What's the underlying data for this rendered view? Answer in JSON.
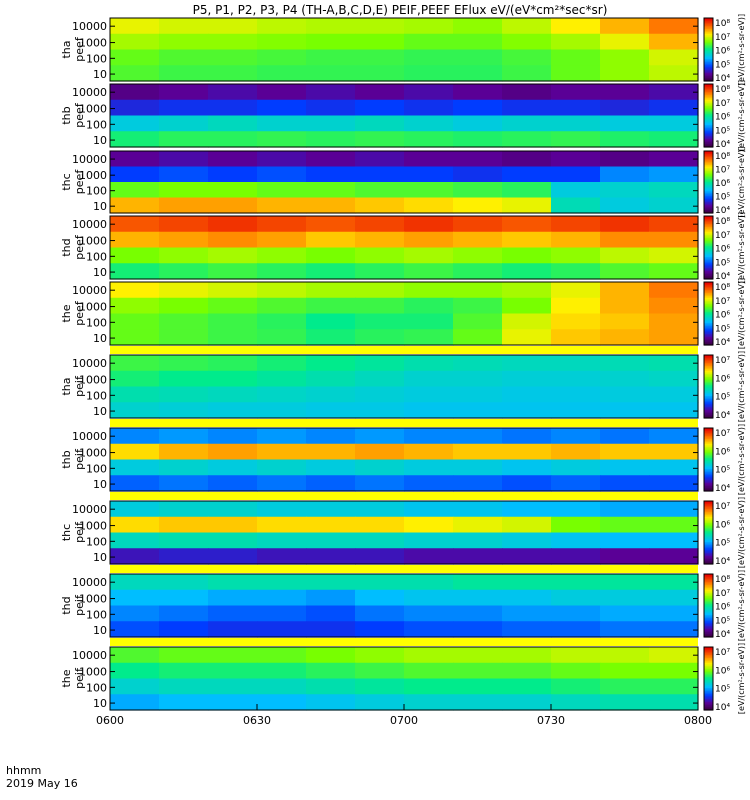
{
  "chart_data": {
    "type": "heatmap",
    "title": "P5, P1, P2, P3, P4 (TH-A,B,C,D,E) PEIF,PEEF EFlux eV/(eV*cm²*sec*sr)",
    "xlabel": "hhmm",
    "date_label": "2019 May 16",
    "x_ticks": [
      "0600",
      "0630",
      "0700",
      "0730",
      "0800"
    ],
    "x_range": [
      "06:00",
      "08:00"
    ],
    "y_scale": "log",
    "y_ticks": [
      "10",
      "100",
      "1000",
      "10000"
    ],
    "colorbar_unit": "[eV/(cm²-s-sr-eV)]",
    "colormap": "rainbow (purple-blue-cyan-green-yellow-red)",
    "time_bins": [
      "0600",
      "0610",
      "0620",
      "0630",
      "0640",
      "0650",
      "0700",
      "0710",
      "0720",
      "0730",
      "0740",
      "0750"
    ],
    "panels": [
      {
        "label1": "tha",
        "label2": "peef",
        "cb_ticks": [
          "10⁴",
          "10⁵",
          "10⁶",
          "10⁷",
          "10⁸"
        ],
        "cb_exp": [
          4,
          8
        ],
        "levels": [
          [
            0.72,
            0.7,
            0.7,
            0.68,
            0.67,
            0.67,
            0.66,
            0.64,
            0.68,
            0.74,
            0.8,
            0.86
          ],
          [
            0.66,
            0.64,
            0.64,
            0.63,
            0.62,
            0.62,
            0.6,
            0.6,
            0.63,
            0.66,
            0.72,
            0.8
          ],
          [
            0.6,
            0.58,
            0.58,
            0.57,
            0.56,
            0.56,
            0.55,
            0.55,
            0.57,
            0.6,
            0.64,
            0.7
          ],
          [
            0.58,
            0.56,
            0.56,
            0.55,
            0.55,
            0.55,
            0.54,
            0.54,
            0.56,
            0.6,
            0.64,
            0.68
          ]
        ]
      },
      {
        "label1": "thb",
        "label2": "peef",
        "cb_ticks": [
          "10⁴",
          "10⁵",
          "10⁶",
          "10⁷",
          "10⁸"
        ],
        "cb_exp": [
          4,
          8
        ],
        "levels": [
          [
            0.08,
            0.1,
            0.12,
            0.1,
            0.12,
            0.1,
            0.12,
            0.1,
            0.08,
            0.1,
            0.1,
            0.12
          ],
          [
            0.18,
            0.2,
            0.2,
            0.22,
            0.2,
            0.22,
            0.2,
            0.22,
            0.2,
            0.2,
            0.18,
            0.2
          ],
          [
            0.4,
            0.42,
            0.44,
            0.42,
            0.42,
            0.44,
            0.42,
            0.4,
            0.42,
            0.42,
            0.4,
            0.4
          ],
          [
            0.52,
            0.54,
            0.54,
            0.55,
            0.54,
            0.55,
            0.54,
            0.53,
            0.54,
            0.55,
            0.53,
            0.52
          ]
        ]
      },
      {
        "label1": "thc",
        "label2": "peef",
        "cb_ticks": [
          "10⁴",
          "10⁵",
          "10⁶",
          "10⁷",
          "10⁸"
        ],
        "cb_exp": [
          4,
          8
        ],
        "levels": [
          [
            0.1,
            0.12,
            0.1,
            0.12,
            0.1,
            0.12,
            0.1,
            0.1,
            0.08,
            0.1,
            0.08,
            0.1
          ],
          [
            0.22,
            0.24,
            0.22,
            0.24,
            0.22,
            0.22,
            0.22,
            0.2,
            0.22,
            0.22,
            0.3,
            0.32
          ],
          [
            0.6,
            0.62,
            0.62,
            0.6,
            0.6,
            0.58,
            0.58,
            0.56,
            0.54,
            0.4,
            0.42,
            0.44
          ],
          [
            0.8,
            0.82,
            0.82,
            0.8,
            0.8,
            0.78,
            0.76,
            0.74,
            0.72,
            0.45,
            0.4,
            0.42
          ]
        ]
      },
      {
        "label1": "thd",
        "label2": "peef",
        "cb_ticks": [
          "10⁴",
          "10⁵",
          "10⁶",
          "10⁷",
          "10⁸"
        ],
        "cb_exp": [
          4,
          8
        ],
        "levels": [
          [
            0.9,
            0.92,
            0.94,
            0.92,
            0.9,
            0.92,
            0.94,
            0.92,
            0.9,
            0.92,
            0.94,
            0.92
          ],
          [
            0.8,
            0.82,
            0.84,
            0.82,
            0.78,
            0.8,
            0.82,
            0.8,
            0.78,
            0.8,
            0.84,
            0.84
          ],
          [
            0.62,
            0.64,
            0.66,
            0.64,
            0.62,
            0.64,
            0.66,
            0.64,
            0.62,
            0.64,
            0.68,
            0.7
          ],
          [
            0.52,
            0.54,
            0.56,
            0.54,
            0.52,
            0.54,
            0.56,
            0.54,
            0.52,
            0.54,
            0.58,
            0.6
          ]
        ]
      },
      {
        "label1": "the",
        "label2": "peef",
        "cb_ticks": [
          "10⁴",
          "10⁵",
          "10⁶",
          "10⁷",
          "10⁸"
        ],
        "cb_exp": [
          4,
          8
        ],
        "levels": [
          [
            0.74,
            0.72,
            0.7,
            0.68,
            0.66,
            0.66,
            0.64,
            0.64,
            0.66,
            0.72,
            0.8,
            0.86
          ],
          [
            0.64,
            0.62,
            0.6,
            0.58,
            0.56,
            0.56,
            0.54,
            0.56,
            0.62,
            0.74,
            0.8,
            0.84
          ],
          [
            0.6,
            0.58,
            0.56,
            0.54,
            0.5,
            0.52,
            0.52,
            0.58,
            0.7,
            0.76,
            0.78,
            0.82
          ],
          [
            0.6,
            0.58,
            0.56,
            0.55,
            0.52,
            0.54,
            0.55,
            0.6,
            0.72,
            0.78,
            0.8,
            0.82
          ]
        ]
      },
      {
        "label1": "tha",
        "label2": "peif",
        "cb_ticks": [
          "10⁴",
          "10⁵",
          "10⁶",
          "10⁷"
        ],
        "cb_exp": [
          4,
          7
        ],
        "levels": [
          [
            0.56,
            0.55,
            0.54,
            0.52,
            0.5,
            0.48,
            0.46,
            0.45,
            0.44,
            0.44,
            0.45,
            0.46
          ],
          [
            0.52,
            0.5,
            0.5,
            0.48,
            0.46,
            0.44,
            0.42,
            0.42,
            0.41,
            0.41,
            0.42,
            0.43
          ],
          [
            0.46,
            0.45,
            0.44,
            0.43,
            0.42,
            0.41,
            0.4,
            0.4,
            0.39,
            0.39,
            0.4,
            0.4
          ],
          [
            0.42,
            0.41,
            0.4,
            0.4,
            0.39,
            0.39,
            0.38,
            0.38,
            0.38,
            0.38,
            0.38,
            0.38
          ]
        ]
      },
      {
        "label1": "thb",
        "label2": "peif",
        "cb_ticks": [
          "10⁴",
          "10⁵",
          "10⁶",
          "10⁷"
        ],
        "cb_exp": [
          4,
          7
        ],
        "levels": [
          [
            0.3,
            0.32,
            0.3,
            0.32,
            0.3,
            0.32,
            0.3,
            0.3,
            0.28,
            0.3,
            0.28,
            0.3
          ],
          [
            0.76,
            0.8,
            0.82,
            0.8,
            0.8,
            0.82,
            0.8,
            0.78,
            0.78,
            0.8,
            0.78,
            0.78
          ],
          [
            0.4,
            0.42,
            0.4,
            0.42,
            0.4,
            0.42,
            0.4,
            0.4,
            0.38,
            0.4,
            0.38,
            0.38
          ],
          [
            0.26,
            0.28,
            0.26,
            0.28,
            0.26,
            0.28,
            0.26,
            0.26,
            0.24,
            0.26,
            0.24,
            0.24
          ]
        ]
      },
      {
        "label1": "thc",
        "label2": "peif",
        "cb_ticks": [
          "10⁴",
          "10⁵",
          "10⁶",
          "10⁷"
        ],
        "cb_exp": [
          4,
          7
        ],
        "levels": [
          [
            0.4,
            0.42,
            0.42,
            0.4,
            0.4,
            0.4,
            0.38,
            0.38,
            0.36,
            0.36,
            0.34,
            0.34
          ],
          [
            0.76,
            0.78,
            0.78,
            0.76,
            0.76,
            0.76,
            0.74,
            0.72,
            0.7,
            0.62,
            0.6,
            0.6
          ],
          [
            0.44,
            0.46,
            0.46,
            0.44,
            0.44,
            0.44,
            0.42,
            0.42,
            0.4,
            0.38,
            0.36,
            0.36
          ],
          [
            0.14,
            0.16,
            0.16,
            0.14,
            0.14,
            0.14,
            0.12,
            0.12,
            0.12,
            0.12,
            0.1,
            0.1
          ]
        ]
      },
      {
        "label1": "thd",
        "label2": "peif",
        "cb_ticks": [
          "10⁴",
          "10⁵",
          "10⁶",
          "10⁷",
          "10⁸"
        ],
        "cb_exp": [
          4,
          8
        ],
        "levels": [
          [
            0.44,
            0.44,
            0.46,
            0.46,
            0.46,
            0.46,
            0.46,
            0.48,
            0.48,
            0.48,
            0.48,
            0.48
          ],
          [
            0.36,
            0.36,
            0.34,
            0.34,
            0.32,
            0.36,
            0.38,
            0.38,
            0.38,
            0.4,
            0.4,
            0.4
          ],
          [
            0.3,
            0.28,
            0.26,
            0.26,
            0.24,
            0.28,
            0.3,
            0.3,
            0.32,
            0.32,
            0.34,
            0.34
          ],
          [
            0.24,
            0.22,
            0.2,
            0.2,
            0.2,
            0.22,
            0.24,
            0.24,
            0.26,
            0.26,
            0.28,
            0.28
          ]
        ]
      },
      {
        "label1": "the",
        "label2": "peif",
        "cb_ticks": [
          "10⁴",
          "10⁵",
          "10⁶",
          "10⁷"
        ],
        "cb_exp": [
          4,
          7
        ],
        "levels": [
          [
            0.58,
            0.6,
            0.6,
            0.6,
            0.62,
            0.64,
            0.66,
            0.66,
            0.66,
            0.68,
            0.68,
            0.7
          ],
          [
            0.5,
            0.52,
            0.52,
            0.52,
            0.54,
            0.56,
            0.58,
            0.58,
            0.58,
            0.6,
            0.62,
            0.62
          ],
          [
            0.42,
            0.44,
            0.44,
            0.44,
            0.46,
            0.48,
            0.5,
            0.5,
            0.5,
            0.52,
            0.54,
            0.54
          ],
          [
            0.34,
            0.36,
            0.36,
            0.36,
            0.38,
            0.4,
            0.42,
            0.42,
            0.42,
            0.44,
            0.46,
            0.46
          ]
        ]
      }
    ]
  }
}
